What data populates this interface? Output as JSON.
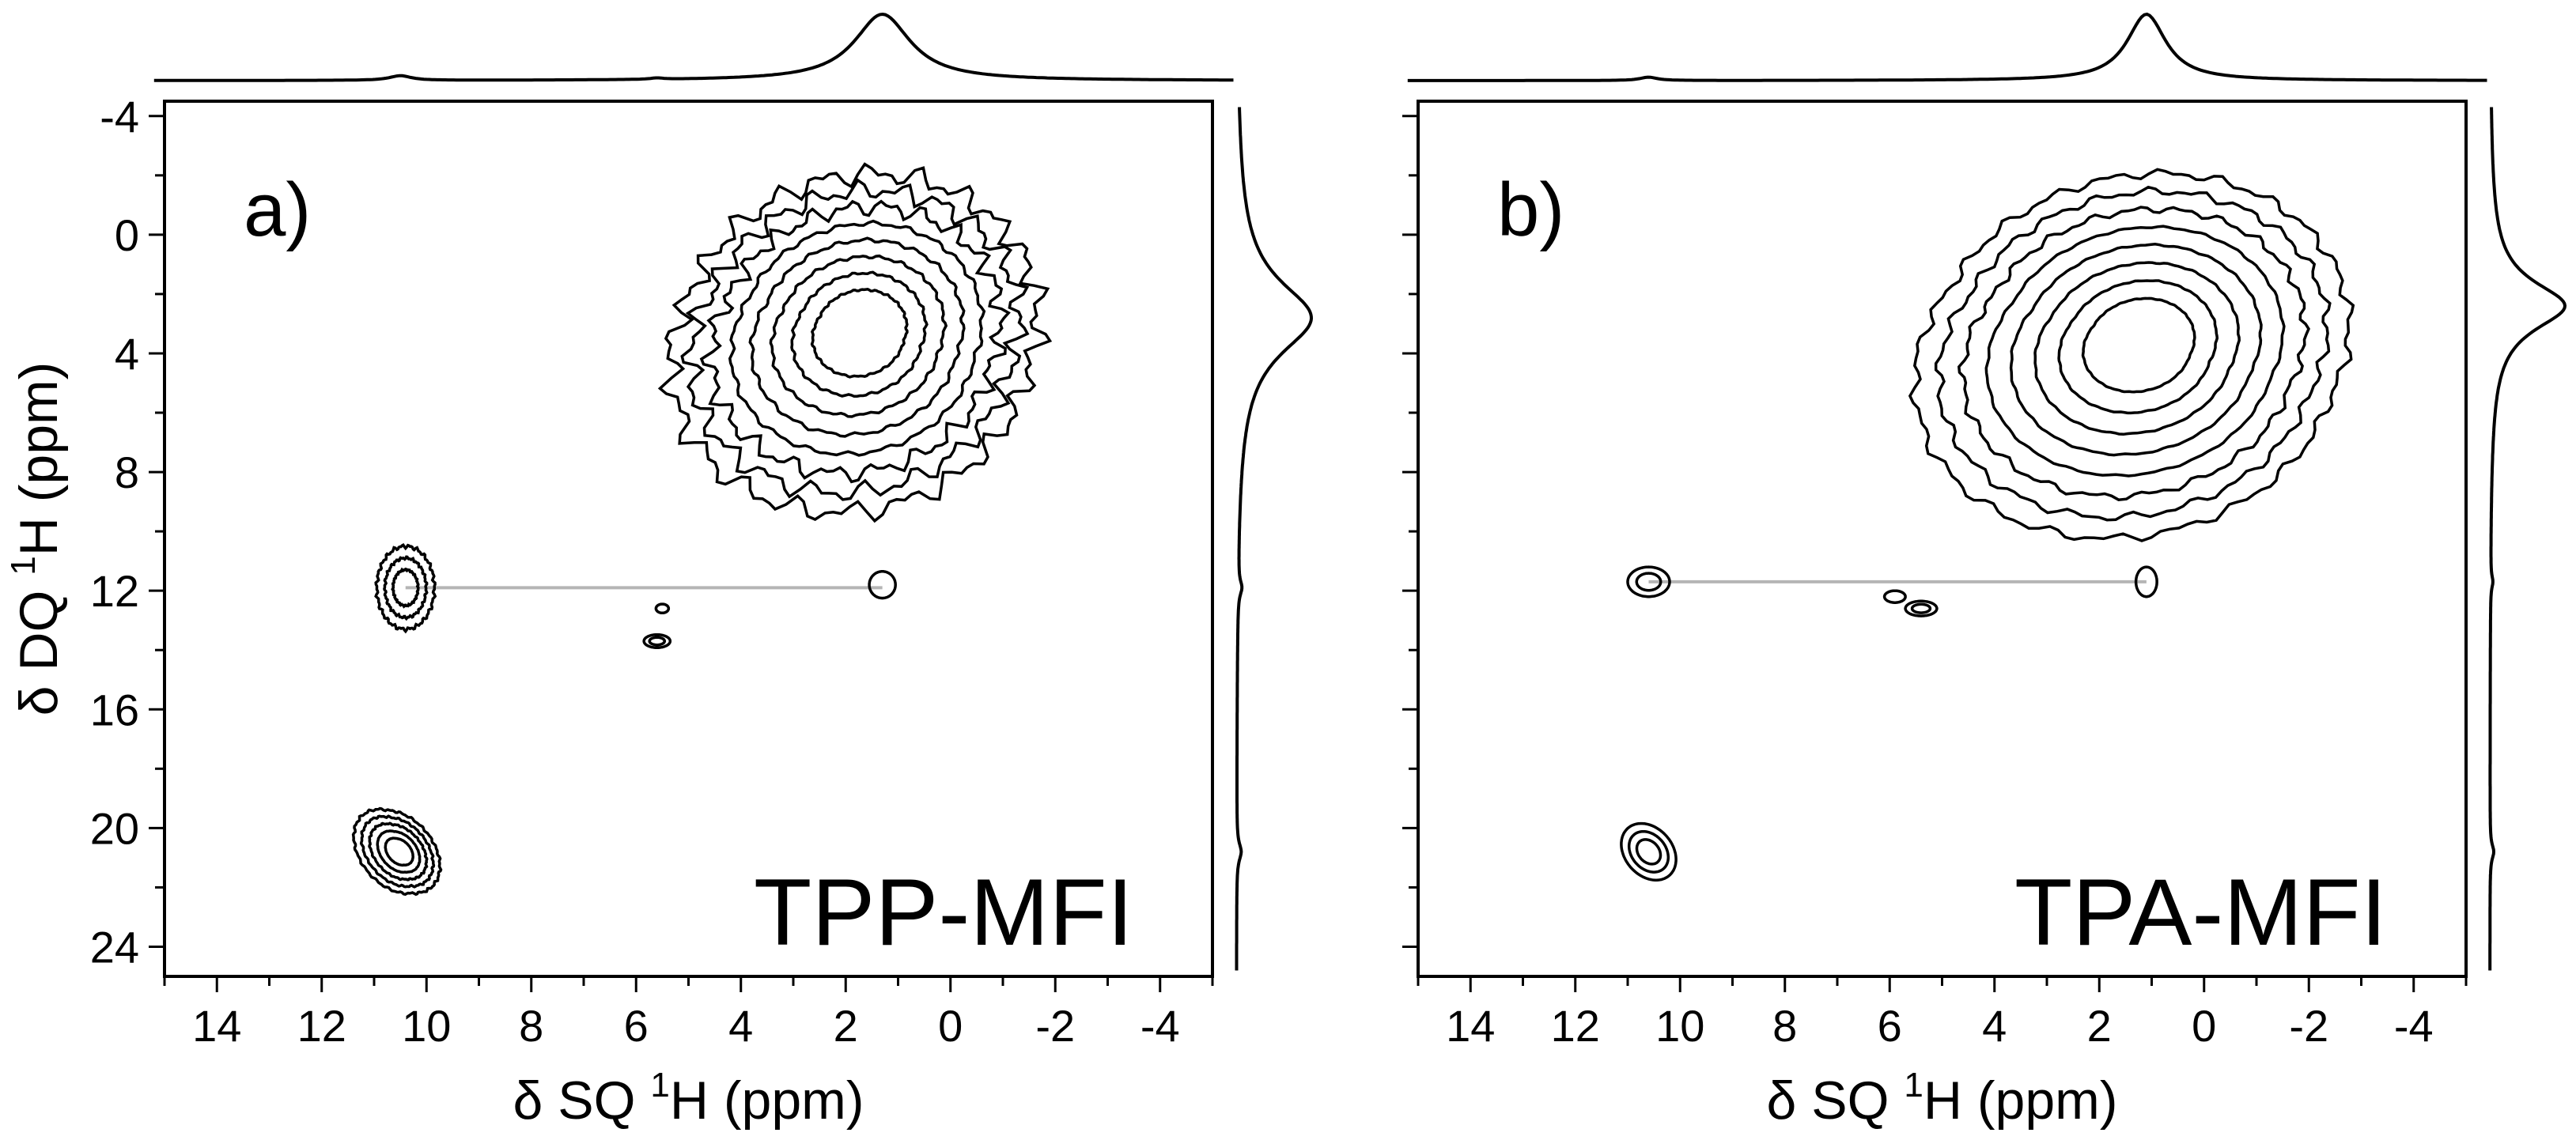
{
  "figure": {
    "x_axis_label": {
      "prefix": "δ SQ ",
      "sup": "1",
      "suffix": "H (ppm)"
    },
    "y_axis_label": {
      "prefix": "δ DQ ",
      "sup": "1",
      "suffix": "H (ppm)"
    }
  },
  "chart_data": [
    {
      "type": "contour",
      "panel_label": "a)",
      "sample": "TPP-MFI",
      "xlabel": "δ SQ 1H (ppm)",
      "ylabel": "δ DQ 1H (ppm)",
      "xlim": [
        15,
        -5
      ],
      "ylim": [
        -4.5,
        25
      ],
      "x_ticks": [
        "14",
        "12",
        "10",
        "8",
        "6",
        "4",
        "2",
        "0",
        "-2",
        "-4"
      ],
      "y_ticks": [
        "-4",
        "0",
        "4",
        "8",
        "12",
        "16",
        "20",
        "24"
      ],
      "peaks": [
        {
          "sq": 1.7,
          "dq": 3.2,
          "rx": 3.4,
          "ry": 5.2,
          "levels": 8,
          "orient": -0.25,
          "rough": 0.08
        },
        {
          "sq": 10.4,
          "dq": 11.9,
          "rx": 0.55,
          "ry": 1.4,
          "levels": 3,
          "orient": 0,
          "rough": 0.05
        },
        {
          "sq": 1.3,
          "dq": 11.8,
          "rx": 0.25,
          "ry": 0.45,
          "levels": 1,
          "orient": 0,
          "rough": 0
        },
        {
          "sq": 5.6,
          "dq": 13.7,
          "rx": 0.25,
          "ry": 0.22,
          "levels": 2,
          "orient": 0,
          "rough": 0
        },
        {
          "sq": 5.5,
          "dq": 12.6,
          "rx": 0.12,
          "ry": 0.15,
          "levels": 1,
          "orient": 0,
          "rough": 0
        },
        {
          "sq": 10.5,
          "dq": 20.8,
          "rx": 0.9,
          "ry": 1.1,
          "levels": 5,
          "orient": 0.85,
          "rough": 0.03
        }
      ],
      "correlation_line": {
        "sq_from": 10.4,
        "sq_to": 1.3,
        "dq": 11.9
      },
      "f2_projection": [
        {
          "pos": 1.3,
          "height": 1.0,
          "width": 1.3
        },
        {
          "pos": 10.5,
          "height": 0.07,
          "width": 0.5
        },
        {
          "pos": 5.6,
          "height": 0.02,
          "width": 0.3
        }
      ],
      "f1_projection": [
        {
          "pos": 2.8,
          "height": 1.0,
          "width": 3.0
        },
        {
          "pos": 11.9,
          "height": 0.05,
          "width": 0.6
        },
        {
          "pos": 20.8,
          "height": 0.06,
          "width": 0.7
        }
      ]
    },
    {
      "type": "contour",
      "panel_label": "b)",
      "sample": "TPA-MFI",
      "xlabel": "δ SQ 1H (ppm)",
      "ylabel": "δ DQ 1H (ppm)",
      "xlim": [
        15,
        -5
      ],
      "ylim": [
        -4.5,
        25
      ],
      "x_ticks": [
        "14",
        "12",
        "10",
        "8",
        "6",
        "4",
        "2",
        "0",
        "-2",
        "-4"
      ],
      "y_ticks": [
        "-4",
        "0",
        "4",
        "8",
        "12",
        "16",
        "20",
        "24"
      ],
      "peaks": [
        {
          "sq": 1.2,
          "dq": 3.6,
          "rx": 4.0,
          "ry": 5.6,
          "levels": 8,
          "orient": -0.2,
          "rough": 0.03
        },
        {
          "sq": 10.6,
          "dq": 11.7,
          "rx": 0.4,
          "ry": 0.5,
          "levels": 2,
          "orient": 0,
          "rough": 0
        },
        {
          "sq": 1.1,
          "dq": 11.7,
          "rx": 0.2,
          "ry": 0.5,
          "levels": 1,
          "orient": 0,
          "rough": 0
        },
        {
          "sq": 5.9,
          "dq": 12.2,
          "rx": 0.2,
          "ry": 0.2,
          "levels": 1,
          "orient": 0,
          "rough": 0
        },
        {
          "sq": 5.4,
          "dq": 12.6,
          "rx": 0.3,
          "ry": 0.25,
          "levels": 2,
          "orient": 0,
          "rough": 0
        },
        {
          "sq": 10.6,
          "dq": 20.8,
          "rx": 0.6,
          "ry": 0.8,
          "levels": 3,
          "orient": 0.85,
          "rough": 0
        }
      ],
      "correlation_line": {
        "sq_from": 10.6,
        "sq_to": 1.1,
        "dq": 11.7
      },
      "f2_projection": [
        {
          "pos": 1.1,
          "height": 1.0,
          "width": 0.9
        },
        {
          "pos": 10.6,
          "height": 0.05,
          "width": 0.4
        }
      ],
      "f1_projection": [
        {
          "pos": 2.4,
          "height": 1.0,
          "width": 2.0
        },
        {
          "pos": 11.7,
          "height": 0.03,
          "width": 0.5
        },
        {
          "pos": 20.8,
          "height": 0.05,
          "width": 0.6
        }
      ]
    }
  ]
}
